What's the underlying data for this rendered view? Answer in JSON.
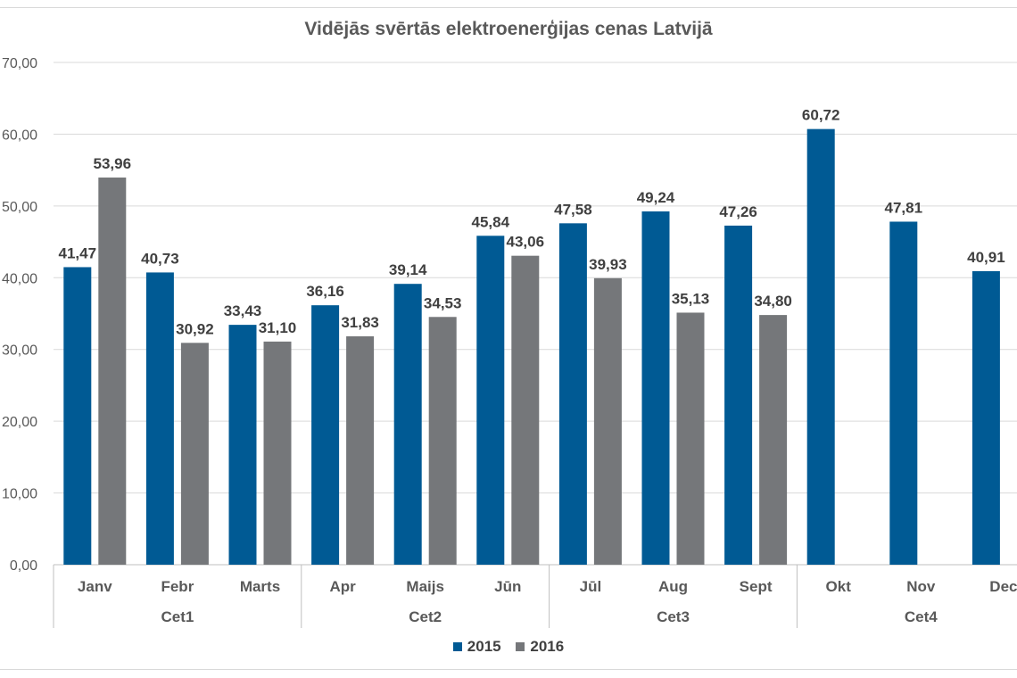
{
  "chart_data": {
    "type": "bar",
    "title": "Vidējās svērtās elektroenerģijas cenas Latvijā",
    "categories": [
      "Janv",
      "Febr",
      "Marts",
      "Apr",
      "Maijs",
      "Jūn",
      "Jūl",
      "Aug",
      "Sept",
      "Okt",
      "Nov",
      "Dec"
    ],
    "groups": [
      {
        "label": "Cet1",
        "months": 3
      },
      {
        "label": "Cet2",
        "months": 3
      },
      {
        "label": "Cet3",
        "months": 3
      },
      {
        "label": "Cet4",
        "months": 3
      }
    ],
    "series": [
      {
        "name": "2015",
        "color": "#005a94",
        "values": [
          41.47,
          40.73,
          33.43,
          36.16,
          39.14,
          45.84,
          47.58,
          49.24,
          47.26,
          60.72,
          47.81,
          40.91
        ],
        "labels": [
          "41,47",
          "40,73",
          "33,43",
          "36,16",
          "39,14",
          "45,84",
          "47,58",
          "49,24",
          "47,26",
          "60,72",
          "47,81",
          "40,91"
        ]
      },
      {
        "name": "2016",
        "color": "#75777a",
        "values": [
          53.96,
          30.92,
          31.1,
          31.83,
          34.53,
          43.06,
          39.93,
          35.13,
          34.8,
          null,
          null,
          null
        ],
        "labels": [
          "53,96",
          "30,92",
          "31,10",
          "31,83",
          "34,53",
          "43,06",
          "39,93",
          "35,13",
          "34,80",
          "",
          "",
          ""
        ]
      }
    ],
    "yticks": [
      "0,00",
      "10,00",
      "20,00",
      "30,00",
      "40,00",
      "50,00",
      "60,00",
      "70,00"
    ],
    "ylim": [
      0,
      70
    ],
    "grid": true,
    "legend_position": "bottom"
  }
}
